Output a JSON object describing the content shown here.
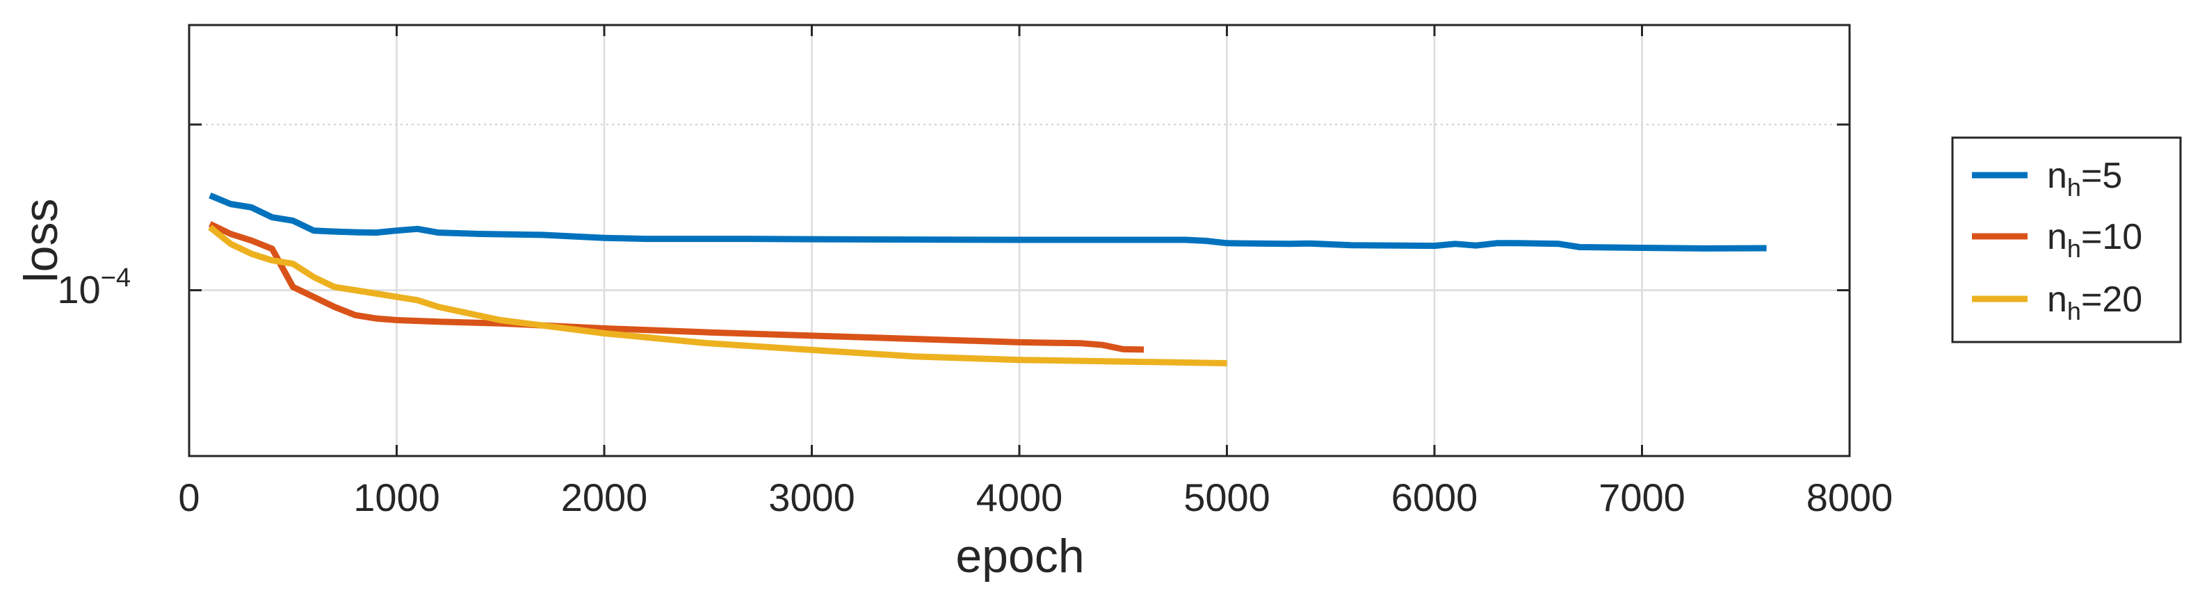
{
  "chart_data": {
    "type": "line",
    "title": "",
    "xlabel": "epoch",
    "ylabel": "loss",
    "xlim": [
      0,
      8000
    ],
    "ylim_log10": [
      -4.5,
      -3.2
    ],
    "y_scale": "log",
    "grid": true,
    "legend_position": "outside-right",
    "x_ticks": [
      0,
      1000,
      2000,
      3000,
      4000,
      5000,
      6000,
      7000,
      8000
    ],
    "y_ticks": [
      {
        "log10": -4,
        "base": "10",
        "exp": "−4"
      }
    ],
    "series": [
      {
        "label_base": "n",
        "label_sub": "h",
        "label_rest": "=5",
        "color": "#0072BD",
        "x": [
          100,
          200,
          300,
          400,
          500,
          600,
          700,
          800,
          900,
          1000,
          1100,
          1200,
          1400,
          1700,
          2000,
          2200,
          2500,
          2700,
          3000,
          3500,
          4000,
          4500,
          4800,
          4900,
          5000,
          5300,
          5400,
          5600,
          6000,
          6100,
          6200,
          6300,
          6400,
          6600,
          6700,
          7000,
          7300,
          7600
        ],
        "log10y": [
          -3.714,
          -3.74,
          -3.75,
          -3.78,
          -3.79,
          -3.82,
          -3.823,
          -3.825,
          -3.826,
          -3.82,
          -3.815,
          -3.826,
          -3.83,
          -3.833,
          -3.842,
          -3.845,
          -3.845,
          -3.845,
          -3.846,
          -3.847,
          -3.848,
          -3.848,
          -3.848,
          -3.851,
          -3.858,
          -3.86,
          -3.859,
          -3.864,
          -3.866,
          -3.86,
          -3.865,
          -3.858,
          -3.858,
          -3.86,
          -3.87,
          -3.872,
          -3.874,
          -3.873
        ]
      },
      {
        "label_base": "n",
        "label_sub": "h",
        "label_rest": "=10",
        "color": "#D95319",
        "x": [
          100,
          200,
          300,
          400,
          500,
          600,
          700,
          800,
          900,
          1000,
          1200,
          1500,
          2000,
          2500,
          3000,
          3500,
          4000,
          4300,
          4400,
          4500,
          4600
        ],
        "log10y": [
          -3.8,
          -3.83,
          -3.85,
          -3.875,
          -3.99,
          -4.02,
          -4.05,
          -4.075,
          -4.085,
          -4.09,
          -4.095,
          -4.1,
          -4.115,
          -4.127,
          -4.137,
          -4.147,
          -4.157,
          -4.16,
          -4.165,
          -4.178,
          -4.179
        ]
      },
      {
        "label_base": "n",
        "label_sub": "h",
        "label_rest": "=20",
        "color": "#EDB120",
        "x": [
          100,
          200,
          300,
          400,
          500,
          600,
          700,
          800,
          1000,
          1100,
          1200,
          1500,
          2000,
          2500,
          3000,
          3500,
          4000,
          4500,
          5000
        ],
        "log10y": [
          -3.81,
          -3.86,
          -3.89,
          -3.91,
          -3.92,
          -3.96,
          -3.99,
          -4.0,
          -4.02,
          -4.03,
          -4.05,
          -4.09,
          -4.13,
          -4.16,
          -4.18,
          -4.2,
          -4.21,
          -4.215,
          -4.22
        ]
      }
    ]
  }
}
